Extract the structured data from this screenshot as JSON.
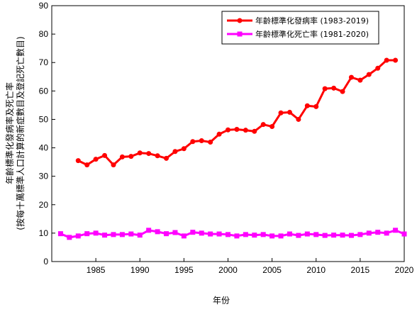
{
  "chart_data": {
    "type": "line",
    "xlabel": "年份",
    "ylabel_line1": "年齡標準化發病率及死亡率",
    "ylabel_line2": "(按每十萬標準人口計算的新症數目及登記死亡數目)",
    "xlim": [
      1980,
      2020
    ],
    "ylim": [
      0,
      90
    ],
    "x_ticks": [
      1985,
      1990,
      1995,
      2000,
      2005,
      2010,
      2015,
      2020
    ],
    "y_ticks": [
      0,
      10,
      20,
      30,
      40,
      50,
      60,
      70,
      80,
      90
    ],
    "grid": false,
    "legend_position": "top-right",
    "series": [
      {
        "name": "年齡標準化發病率 (1983-2019)",
        "color": "#ff0000",
        "marker": "circle",
        "x": [
          1983,
          1984,
          1985,
          1986,
          1987,
          1988,
          1989,
          1990,
          1991,
          1992,
          1993,
          1994,
          1995,
          1996,
          1997,
          1998,
          1999,
          2000,
          2001,
          2002,
          2003,
          2004,
          2005,
          2006,
          2007,
          2008,
          2009,
          2010,
          2011,
          2012,
          2013,
          2014,
          2015,
          2016,
          2017,
          2018,
          2019
        ],
        "values": [
          35.5,
          34.0,
          36.0,
          37.3,
          34.0,
          36.8,
          37.0,
          38.2,
          38.0,
          37.2,
          36.3,
          38.7,
          39.7,
          42.2,
          42.5,
          42.0,
          44.8,
          46.3,
          46.5,
          46.2,
          45.8,
          48.2,
          47.5,
          52.3,
          52.5,
          50.0,
          54.8,
          54.5,
          60.8,
          61.0,
          59.8,
          64.8,
          63.8,
          65.8,
          68.0,
          70.8,
          70.8
        ]
      },
      {
        "name": "年齡標準化死亡率 (1981-2020)",
        "color": "#ff00ff",
        "marker": "square",
        "x": [
          1981,
          1982,
          1983,
          1984,
          1985,
          1986,
          1987,
          1988,
          1989,
          1990,
          1991,
          1992,
          1993,
          1994,
          1995,
          1996,
          1997,
          1998,
          1999,
          2000,
          2001,
          2002,
          2003,
          2004,
          2005,
          2006,
          2007,
          2008,
          2009,
          2010,
          2011,
          2012,
          2013,
          2014,
          2015,
          2016,
          2017,
          2018,
          2019,
          2020
        ],
        "values": [
          9.8,
          8.5,
          9.0,
          9.8,
          10.0,
          9.3,
          9.5,
          9.5,
          9.7,
          9.3,
          11.0,
          10.5,
          9.8,
          10.2,
          9.0,
          10.3,
          10.0,
          9.7,
          9.7,
          9.5,
          9.0,
          9.5,
          9.3,
          9.5,
          9.0,
          9.0,
          9.7,
          9.2,
          9.7,
          9.5,
          9.2,
          9.3,
          9.3,
          9.2,
          9.5,
          10.0,
          10.3,
          10.0,
          11.0,
          9.7
        ]
      }
    ]
  }
}
